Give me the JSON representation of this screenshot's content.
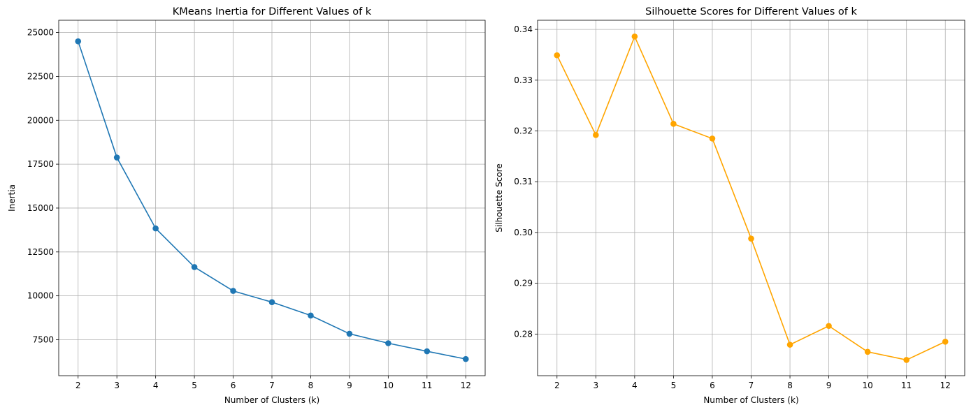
{
  "chart_data": [
    {
      "type": "line",
      "title": "KMeans Inertia for Different Values of k",
      "xlabel": "Number of Clusters (k)",
      "ylabel": "Inertia",
      "x": [
        2,
        3,
        4,
        5,
        6,
        7,
        8,
        9,
        10,
        11,
        12
      ],
      "xlim": [
        1.5,
        12.5
      ],
      "ylim": [
        5450,
        25700
      ],
      "xticks": [
        2,
        3,
        4,
        5,
        6,
        7,
        8,
        9,
        10,
        11,
        12
      ],
      "yticks": [
        7500,
        10000,
        12500,
        15000,
        17500,
        20000,
        22500,
        25000
      ],
      "ytick_decimals": 0,
      "grid": true,
      "marker": "circle",
      "series": [
        {
          "values": [
            24500,
            17880,
            13840,
            11640,
            10280,
            9640,
            8880,
            7840,
            7300,
            6840,
            6400
          ],
          "color": "#1f77b4"
        }
      ]
    },
    {
      "type": "line",
      "title": "Silhouette Scores for Different Values of k",
      "xlabel": "Number of Clusters (k)",
      "ylabel": "Silhouette Score",
      "x": [
        2,
        3,
        4,
        5,
        6,
        7,
        8,
        9,
        10,
        11,
        12
      ],
      "xlim": [
        1.5,
        12.5
      ],
      "ylim": [
        0.2718,
        0.3418
      ],
      "xticks": [
        2,
        3,
        4,
        5,
        6,
        7,
        8,
        9,
        10,
        11,
        12
      ],
      "yticks": [
        0.28,
        0.29,
        0.3,
        0.31,
        0.32,
        0.33,
        0.34
      ],
      "ytick_decimals": 2,
      "grid": true,
      "marker": "circle",
      "series": [
        {
          "values": [
            0.3349,
            0.3192,
            0.3386,
            0.3214,
            0.3185,
            0.2988,
            0.2779,
            0.2816,
            0.2765,
            0.2749,
            0.2785
          ],
          "color": "#ffa500"
        }
      ]
    }
  ]
}
